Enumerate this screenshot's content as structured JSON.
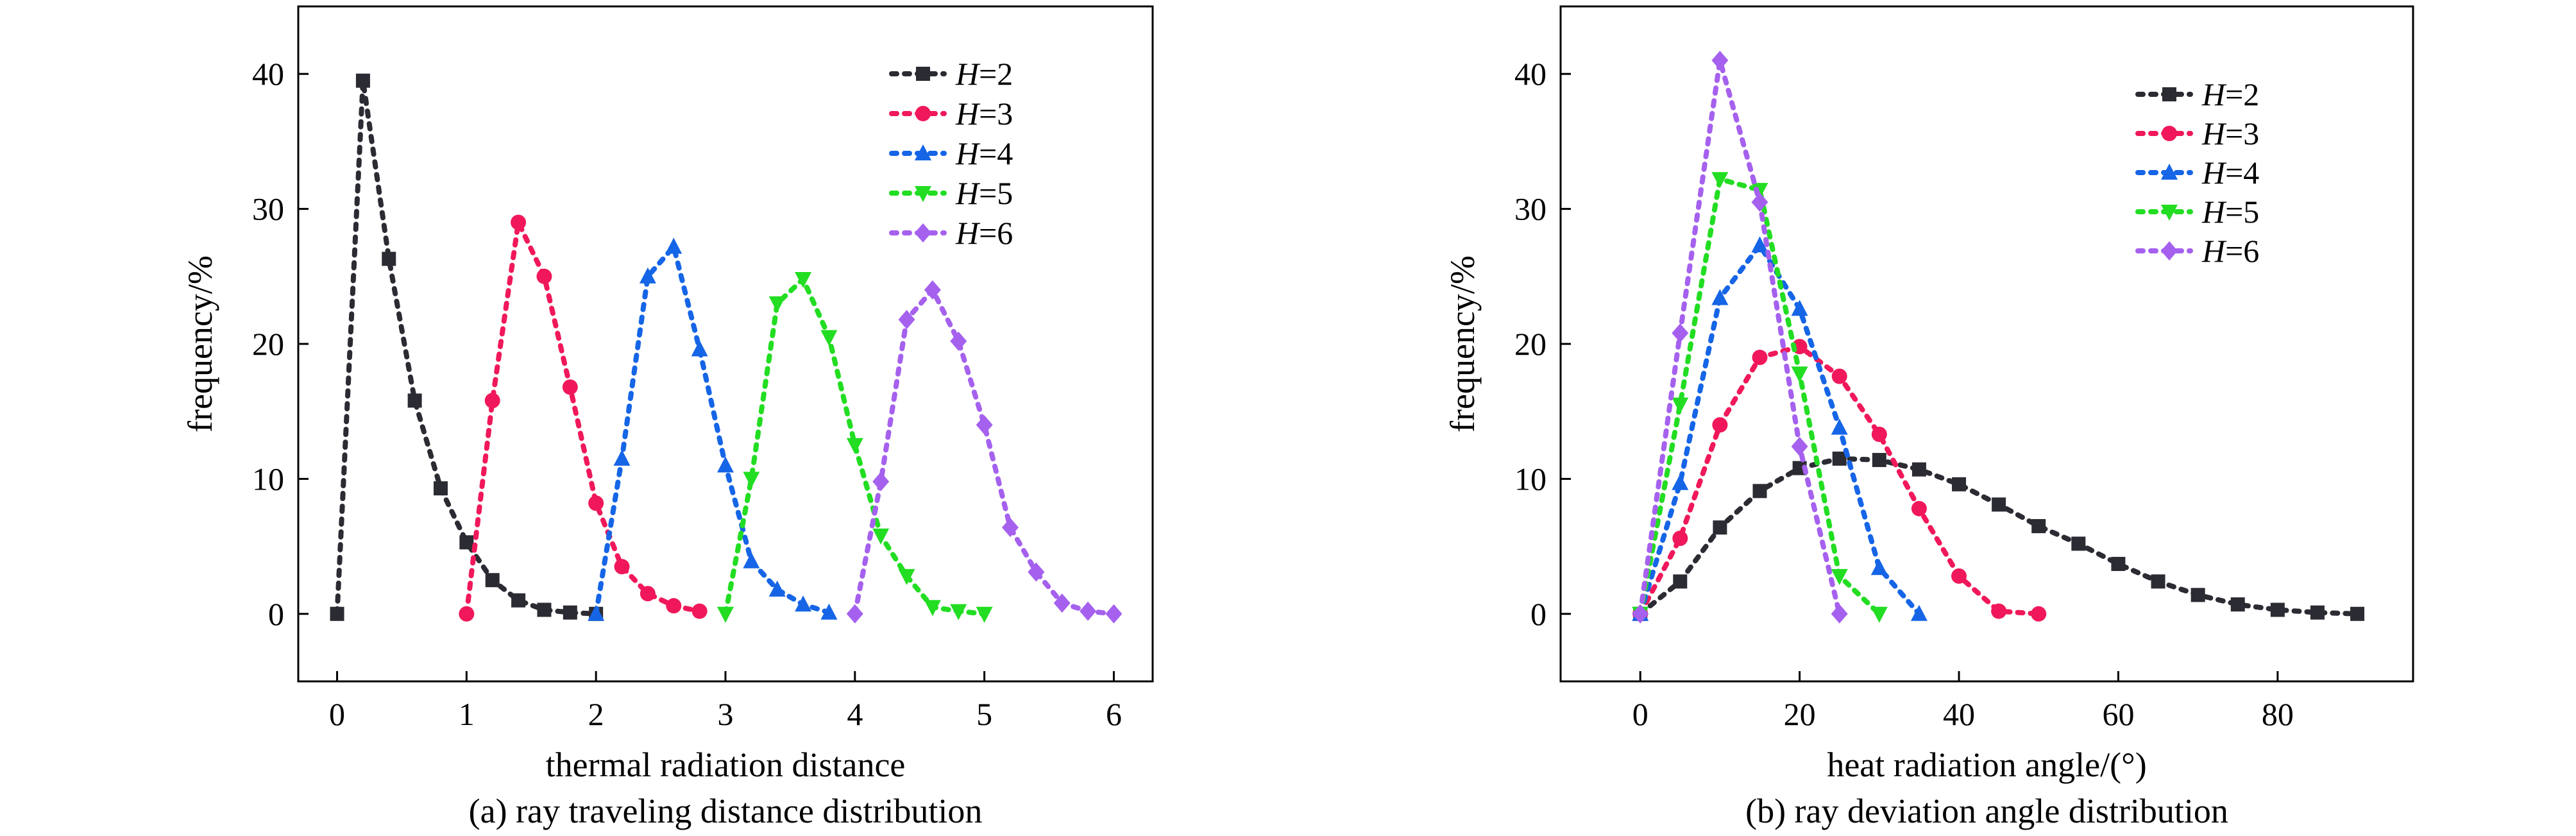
{
  "chart_data": [
    {
      "type": "line",
      "xlabel": "thermal radiation distance",
      "ylabel": "frequency/%",
      "caption": "(a) ray traveling distance distribution",
      "xlim": [
        -0.3,
        6.3
      ],
      "ylim": [
        -5,
        45
      ],
      "xticks": [
        0,
        1,
        2,
        3,
        4,
        5,
        6
      ],
      "yticks": [
        0,
        10,
        20,
        30,
        40
      ],
      "grid": false,
      "legend_position": "top-right",
      "series": [
        {
          "name": "H=2",
          "color": "#2b2b33",
          "marker": "square",
          "x": [
            0,
            0.2,
            0.4,
            0.6,
            0.8,
            1.0,
            1.2,
            1.4,
            1.6,
            1.8,
            2.0
          ],
          "y": [
            0,
            39.5,
            26.3,
            15.8,
            9.3,
            5.3,
            2.5,
            1.0,
            0.3,
            0.1,
            0
          ]
        },
        {
          "name": "H=3",
          "color": "#f0185a",
          "marker": "circle",
          "x": [
            1.0,
            1.2,
            1.4,
            1.6,
            1.8,
            2.0,
            2.2,
            2.4,
            2.6,
            2.8
          ],
          "y": [
            0,
            15.8,
            29.0,
            25.0,
            16.8,
            8.2,
            3.5,
            1.5,
            0.6,
            0.2
          ]
        },
        {
          "name": "H=4",
          "color": "#1565e6",
          "marker": "triangle-up",
          "x": [
            2.0,
            2.2,
            2.4,
            2.6,
            2.8,
            3.0,
            3.2,
            3.4,
            3.6,
            3.8
          ],
          "y": [
            0,
            11.5,
            25.0,
            27.2,
            19.6,
            11.0,
            3.9,
            1.8,
            0.7,
            0.1
          ]
        },
        {
          "name": "H=5",
          "color": "#22dd22",
          "marker": "triangle-down",
          "x": [
            3.0,
            3.2,
            3.4,
            3.6,
            3.8,
            4.0,
            4.2,
            4.4,
            4.6,
            4.8,
            5.0
          ],
          "y": [
            0,
            10.0,
            23.0,
            24.8,
            20.5,
            12.5,
            5.8,
            2.8,
            0.5,
            0.2,
            0
          ]
        },
        {
          "name": "H=6",
          "color": "#a561ee",
          "marker": "diamond",
          "x": [
            4.0,
            4.2,
            4.4,
            4.6,
            4.8,
            5.0,
            5.2,
            5.4,
            5.6,
            5.8,
            6.0
          ],
          "y": [
            0,
            9.8,
            21.8,
            24.0,
            20.2,
            14.0,
            6.4,
            3.1,
            0.8,
            0.2,
            0
          ]
        }
      ]
    },
    {
      "type": "line",
      "xlabel": "heat radiation angle/(°)",
      "ylabel": "frequency/%",
      "caption": "(b) ray deviation angle distribution",
      "xlim": [
        -10,
        97
      ],
      "ylim": [
        -5,
        45
      ],
      "xticks": [
        0,
        20,
        40,
        60,
        80
      ],
      "yticks": [
        0,
        10,
        20,
        30,
        40
      ],
      "grid": false,
      "legend_position": "top-right",
      "series": [
        {
          "name": "H=2",
          "color": "#2b2b33",
          "marker": "square",
          "x": [
            0,
            5,
            10,
            15,
            20,
            25,
            30,
            35,
            40,
            45,
            50,
            55,
            60,
            65,
            70,
            75,
            80,
            85,
            90
          ],
          "y": [
            0,
            2.4,
            6.4,
            9.1,
            10.8,
            11.5,
            11.4,
            10.7,
            9.6,
            8.1,
            6.5,
            5.2,
            3.7,
            2.4,
            1.4,
            0.7,
            0.3,
            0.1,
            0
          ]
        },
        {
          "name": "H=3",
          "color": "#f0185a",
          "marker": "circle",
          "x": [
            0,
            5,
            10,
            15,
            20,
            25,
            30,
            35,
            40,
            45,
            50
          ],
          "y": [
            0,
            5.6,
            14.0,
            19.0,
            19.8,
            17.6,
            13.3,
            7.8,
            2.8,
            0.2,
            0
          ]
        },
        {
          "name": "H=4",
          "color": "#1565e6",
          "marker": "triangle-up",
          "x": [
            0,
            5,
            10,
            15,
            20,
            25,
            30,
            35
          ],
          "y": [
            0,
            9.7,
            23.4,
            27.3,
            22.6,
            13.8,
            3.4,
            0
          ]
        },
        {
          "name": "H=5",
          "color": "#22dd22",
          "marker": "triangle-down",
          "x": [
            0,
            5,
            10,
            15,
            20,
            25,
            30
          ],
          "y": [
            0,
            15.5,
            32.2,
            31.4,
            17.8,
            2.8,
            0
          ]
        },
        {
          "name": "H=6",
          "color": "#a561ee",
          "marker": "diamond",
          "x": [
            0,
            5,
            10,
            15,
            20,
            25
          ],
          "y": [
            0,
            20.8,
            41.0,
            30.5,
            12.4,
            0
          ]
        }
      ]
    }
  ]
}
